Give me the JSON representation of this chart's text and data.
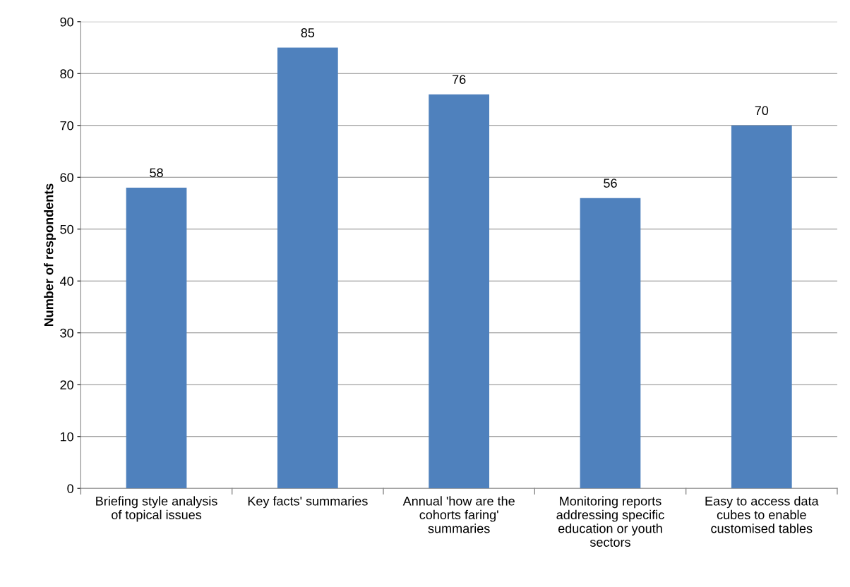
{
  "chart_data": {
    "type": "bar",
    "ylabel": "Number of respondents",
    "categories": [
      "Briefing style analysis\nof topical issues",
      "Key facts' summaries",
      "Annual 'how are the\ncohorts faring'\nsummaries",
      "Monitoring reports\naddressing specific\neducation or youth\nsectors",
      "Easy to access data\ncubes to enable\ncustomised tables"
    ],
    "values": [
      58,
      85,
      76,
      56,
      70
    ],
    "color": "#4f81bd",
    "ylim": [
      0,
      90
    ],
    "yticks": [
      0,
      10,
      20,
      30,
      40,
      50,
      60,
      70,
      80,
      90
    ],
    "grid": "y",
    "data_labels": true,
    "legend": false
  }
}
